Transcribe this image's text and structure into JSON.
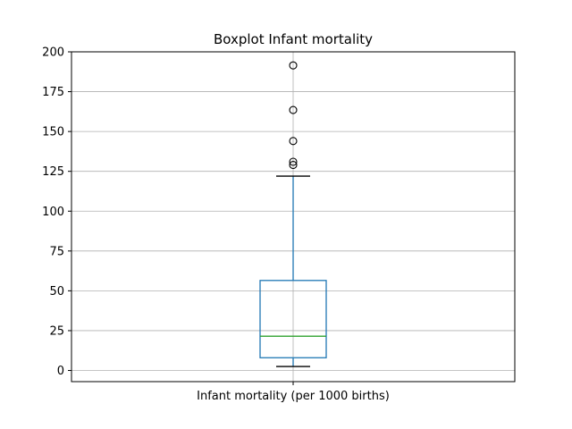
{
  "chart_data": {
    "type": "box",
    "title": "Boxplot Infant mortality",
    "categories": [
      "Infant mortality (per 1000 births)"
    ],
    "xlabel": "",
    "ylabel": "",
    "ylim": [
      -7,
      200
    ],
    "yticks": [
      0,
      25,
      50,
      75,
      100,
      125,
      150,
      175,
      200
    ],
    "grid": true,
    "boxes": [
      {
        "whisker_low": 2.5,
        "q1": 8,
        "median": 21.5,
        "q3": 56.5,
        "whisker_high": 122,
        "outliers": [
          129,
          131,
          144,
          163.5,
          191.5
        ]
      }
    ],
    "colors": {
      "box": "#1f77b4",
      "median": "#2ca02c",
      "whisker_cap": "#000000",
      "grid": "#b0b0b0"
    }
  }
}
